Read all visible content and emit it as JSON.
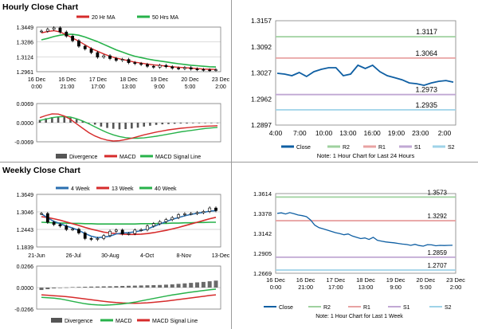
{
  "sections": {
    "hourly_title": "Hourly Close Chart",
    "weekly_title": "Weekly Close Chart"
  },
  "colors": {
    "close": "#0f5fa3",
    "ma20": "#d62b2b",
    "ma50": "#27b24a",
    "r2": "#9fd19f",
    "r1": "#e8a3a3",
    "s1": "#c1a8d4",
    "s2": "#9fd3e8",
    "divergence": "#555555",
    "macd_signal": "#d62b2b",
    "macd": "#27b24a",
    "ma4": "#2a6fb0",
    "ma13": "#d62b2b",
    "ma40": "#27b24a",
    "grid": "#c8c8c8"
  },
  "chart_data": [
    {
      "id": "hourly_price",
      "type": "line",
      "legend": [
        {
          "name": "20 Hr MA",
          "color_key": "ma20"
        },
        {
          "name": "50 Hrs MA",
          "color_key": "ma50"
        }
      ],
      "yticks": [
        "1.3449",
        "1.3286",
        "1.3124",
        "1.2961"
      ],
      "ylim": [
        1.2961,
        1.3449
      ],
      "xticks": [
        {
          "l1": "16 Dec",
          "l2": "0:00"
        },
        {
          "l1": "16 Dec",
          "l2": "21:00"
        },
        {
          "l1": "17 Dec",
          "l2": "17:00"
        },
        {
          "l1": "18 Dec",
          "l2": "13:00"
        },
        {
          "l1": "19 Dec",
          "l2": "9:00"
        },
        {
          "l1": "20 Dec",
          "l2": "5:00"
        },
        {
          "l1": "23 Dec",
          "l2": "2:00"
        }
      ],
      "series": [
        {
          "name": "Close",
          "kind": "candles",
          "values": [
            1.3405,
            1.3425,
            1.344,
            1.3395,
            1.335,
            1.33,
            1.324,
            1.321,
            1.317,
            1.312,
            1.3135,
            1.3105,
            1.3085,
            1.3095,
            1.306,
            1.305,
            1.304,
            1.302,
            1.301,
            1.303,
            1.3015,
            1.3,
            1.2995,
            1.3005,
            1.299,
            1.2985,
            1.298,
            1.2978,
            1.2982
          ]
        },
        {
          "name": "20 Hr MA",
          "values": [
            1.3385,
            1.34,
            1.341,
            1.3395,
            1.3365,
            1.333,
            1.3295,
            1.3255,
            1.3215,
            1.3185,
            1.3155,
            1.313,
            1.311,
            1.3095,
            1.308,
            1.3065,
            1.3055,
            1.3045,
            1.3035,
            1.303,
            1.3022,
            1.3015,
            1.301,
            1.3005,
            1.3,
            1.2995,
            1.299,
            1.2987,
            1.2985
          ]
        },
        {
          "name": "50 Hrs MA",
          "values": [
            1.331,
            1.3325,
            1.3345,
            1.336,
            1.337,
            1.337,
            1.336,
            1.334,
            1.3315,
            1.329,
            1.326,
            1.323,
            1.32,
            1.3175,
            1.315,
            1.313,
            1.3115,
            1.31,
            1.3088,
            1.3078,
            1.3068,
            1.3058,
            1.3048,
            1.304,
            1.3032,
            1.3026,
            1.302,
            1.3015,
            1.3012
          ]
        }
      ]
    },
    {
      "id": "hourly_macd",
      "type": "bar",
      "yticks": [
        "0.0069",
        "0.0000",
        "-0.0069"
      ],
      "ylim": [
        -0.0069,
        0.0069
      ],
      "legend": [
        {
          "name": "Divergence",
          "color_key": "divergence",
          "kind": "bar"
        },
        {
          "name": "MACD",
          "color_key": "macd_signal",
          "kind": "line"
        },
        {
          "name": "MACD Signal Line",
          "color_key": "macd",
          "kind": "line"
        }
      ],
      "divergence": [
        0.001,
        0.0016,
        0.002,
        0.0022,
        0.0021,
        0.0018,
        0.0012,
        0.0006,
        0.0,
        -0.0007,
        -0.0014,
        -0.0019,
        -0.0022,
        -0.0024,
        -0.0023,
        -0.0021,
        -0.0018,
        -0.0014,
        -0.0011,
        -0.0008,
        -0.0006,
        -0.0005,
        -0.0004,
        -0.0003,
        -0.0003,
        -0.0002,
        -0.0002,
        -0.0001,
        -0.0001,
        -0.0001
      ],
      "macd": [
        0.0018,
        0.0026,
        0.0032,
        0.0031,
        0.0024,
        0.0012,
        -0.0004,
        -0.002,
        -0.0036,
        -0.0048,
        -0.0057,
        -0.0063,
        -0.0066,
        -0.0065,
        -0.0061,
        -0.0056,
        -0.005,
        -0.0044,
        -0.0039,
        -0.0034,
        -0.003,
        -0.0026,
        -0.0023,
        -0.002,
        -0.0018,
        -0.0016,
        -0.0014,
        -0.0013,
        -0.0012,
        -0.0011
      ],
      "signal": [
        0.0008,
        0.0013,
        0.0018,
        0.0021,
        0.0022,
        0.002,
        0.0014,
        0.0006,
        -0.0004,
        -0.0015,
        -0.0026,
        -0.0036,
        -0.0044,
        -0.005,
        -0.0054,
        -0.0056,
        -0.0056,
        -0.0055,
        -0.0052,
        -0.0049,
        -0.0045,
        -0.0041,
        -0.0037,
        -0.0033,
        -0.003,
        -0.0027,
        -0.0024,
        -0.0021,
        -0.0019,
        -0.0017
      ]
    },
    {
      "id": "hourly_last24",
      "type": "line",
      "yticks": [
        "1.3157",
        "1.3092",
        "1.3027",
        "1.2962",
        "1.2897"
      ],
      "ylim": [
        1.2897,
        1.3157
      ],
      "xticks": [
        "4:00",
        "7:00",
        "10:00",
        "13:00",
        "16:00",
        "19:00",
        "23:00",
        "2:00"
      ],
      "levels": [
        {
          "name": "R2",
          "value": 1.3117,
          "label": "1.3117",
          "color_key": "r2"
        },
        {
          "name": "R1",
          "value": 1.3064,
          "label": "1.3064",
          "color_key": "r1"
        },
        {
          "name": "S1",
          "value": 1.2973,
          "label": "1.2973",
          "color_key": "s1"
        },
        {
          "name": "S2",
          "value": 1.2935,
          "label": "1.2935",
          "color_key": "s2"
        }
      ],
      "close": [
        1.3026,
        1.3024,
        1.302,
        1.3028,
        1.3018,
        1.303,
        1.3036,
        1.304,
        1.304,
        1.302,
        1.3024,
        1.3046,
        1.3038,
        1.3046,
        1.303,
        1.302,
        1.3015,
        1.301,
        1.3002,
        1.3,
        1.2996,
        1.3002,
        1.3006,
        1.3008,
        1.3004
      ],
      "legend": [
        "Close",
        "R2",
        "R1",
        "S1",
        "S2"
      ],
      "note": "Note: 1 Hour Chart for Last 24 Hours"
    },
    {
      "id": "weekly_price",
      "type": "line",
      "legend": [
        {
          "name": "4 Week",
          "color_key": "ma4"
        },
        {
          "name": "13 Week",
          "color_key": "ma13"
        },
        {
          "name": "40 Week",
          "color_key": "ma40"
        }
      ],
      "yticks": [
        "1.3649",
        "1.3046",
        "1.2443",
        "1.1839"
      ],
      "ylim": [
        1.1839,
        1.3649
      ],
      "xticks": [
        "21-Jun",
        "26-Jul",
        "30-Aug",
        "4-Oct",
        "8-Nov",
        "13-Dec"
      ],
      "series": [
        {
          "name": "Close",
          "kind": "candles",
          "values": [
            1.299,
            1.269,
            1.261,
            1.256,
            1.244,
            1.245,
            1.232,
            1.213,
            1.21,
            1.213,
            1.223,
            1.238,
            1.242,
            1.229,
            1.23,
            1.242,
            1.243,
            1.256,
            1.264,
            1.271,
            1.278,
            1.285,
            1.295,
            1.298,
            1.299,
            1.302,
            1.306,
            1.318,
            1.309
          ]
        },
        {
          "name": "4 Week",
          "values": [
            1.298,
            1.284,
            1.272,
            1.264,
            1.256,
            1.249,
            1.241,
            1.23,
            1.221,
            1.216,
            1.218,
            1.221,
            1.229,
            1.232,
            1.233,
            1.236,
            1.24,
            1.246,
            1.254,
            1.263,
            1.271,
            1.279,
            1.285,
            1.291,
            1.296,
            1.3,
            1.303,
            1.307,
            1.309
          ]
        },
        {
          "name": "13 Week",
          "values": [
            1.288,
            1.285,
            1.281,
            1.276,
            1.27,
            1.264,
            1.258,
            1.251,
            1.245,
            1.24,
            1.235,
            1.232,
            1.23,
            1.228,
            1.227,
            1.227,
            1.228,
            1.23,
            1.233,
            1.237,
            1.241,
            1.246,
            1.251,
            1.257,
            1.263,
            1.269,
            1.275,
            1.281,
            1.286
          ]
        },
        {
          "name": "40 Week",
          "values": [
            1.269,
            1.268,
            1.267,
            1.266,
            1.266,
            1.265,
            1.265,
            1.264,
            1.264,
            1.263,
            1.263,
            1.263,
            1.263,
            1.263,
            1.263,
            1.263,
            1.264,
            1.264,
            1.264,
            1.265,
            1.265,
            1.266,
            1.266,
            1.267,
            1.267,
            1.268,
            1.268,
            1.269,
            1.269
          ]
        }
      ]
    },
    {
      "id": "weekly_macd",
      "type": "bar",
      "yticks": [
        "0.0266",
        "0.0000",
        "-0.0266"
      ],
      "ylim": [
        -0.0266,
        0.0266
      ],
      "legend": [
        {
          "name": "Divergence",
          "color_key": "divergence",
          "kind": "bar"
        },
        {
          "name": "MACD",
          "color_key": "macd",
          "kind": "line"
        },
        {
          "name": "MACD Signal Line",
          "color_key": "macd_signal",
          "kind": "line"
        }
      ],
      "divergence": [
        -0.003,
        -0.002,
        -0.001,
        -0.0005,
        0.0002,
        0.0006,
        0.0008,
        0.001,
        0.0012,
        0.0013,
        0.0015,
        0.0016,
        0.0018,
        0.002,
        0.0022,
        0.0024,
        0.0026,
        0.0028,
        0.003,
        0.0032,
        0.0036,
        0.004,
        0.0046,
        0.0052,
        0.0058,
        0.0064,
        0.007,
        0.0078,
        0.0086
      ],
      "macd": [
        -0.012,
        -0.0125,
        -0.013,
        -0.014,
        -0.0155,
        -0.017,
        -0.0185,
        -0.02,
        -0.021,
        -0.0215,
        -0.0218,
        -0.0215,
        -0.021,
        -0.0202,
        -0.0192,
        -0.018,
        -0.0165,
        -0.015,
        -0.0135,
        -0.012,
        -0.0105,
        -0.0092,
        -0.008,
        -0.0068,
        -0.0056,
        -0.0046,
        -0.0036,
        -0.0028,
        -0.002
      ],
      "signal": [
        -0.009,
        -0.0095,
        -0.01,
        -0.0105,
        -0.0112,
        -0.012,
        -0.013,
        -0.014,
        -0.015,
        -0.016,
        -0.017,
        -0.0178,
        -0.0185,
        -0.019,
        -0.0193,
        -0.0194,
        -0.0192,
        -0.0188,
        -0.0182,
        -0.0175,
        -0.0167,
        -0.0158,
        -0.0148,
        -0.0138,
        -0.0128,
        -0.0118,
        -0.0108,
        -0.0098,
        -0.009
      ]
    },
    {
      "id": "weekly_last1w",
      "type": "line",
      "yticks": [
        "1.3614",
        "1.3378",
        "1.3142",
        "1.2905",
        "1.2669"
      ],
      "ylim": [
        1.2669,
        1.3614
      ],
      "xticks": [
        {
          "l1": "16 Dec",
          "l2": "0:00"
        },
        {
          "l1": "16 Dec",
          "l2": "21:00"
        },
        {
          "l1": "17 Dec",
          "l2": "17:00"
        },
        {
          "l1": "18 Dec",
          "l2": "13:00"
        },
        {
          "l1": "19 Dec",
          "l2": "9:00"
        },
        {
          "l1": "20 Dec",
          "l2": "5:00"
        },
        {
          "l1": "23 Dec",
          "l2": "2:00"
        }
      ],
      "levels": [
        {
          "name": "R2",
          "value": 1.3573,
          "label": "1.3573",
          "color_key": "r2"
        },
        {
          "name": "R1",
          "value": 1.3292,
          "label": "1.3292",
          "color_key": "r1"
        },
        {
          "name": "S1",
          "value": 1.2859,
          "label": "1.2859",
          "color_key": "s1"
        },
        {
          "name": "S2",
          "value": 1.2707,
          "label": "1.2707",
          "color_key": "s2"
        }
      ],
      "close": [
        1.338,
        1.3385,
        1.3372,
        1.3388,
        1.3376,
        1.336,
        1.3352,
        1.334,
        1.33,
        1.324,
        1.321,
        1.3195,
        1.318,
        1.3165,
        1.315,
        1.314,
        1.3125,
        1.3135,
        1.311,
        1.3095,
        1.308,
        1.3088,
        1.307,
        1.3095,
        1.306,
        1.305,
        1.304,
        1.3035,
        1.303,
        1.3022,
        1.3015,
        1.301,
        1.3,
        1.3012,
        1.2998,
        1.299,
        1.3008,
        1.3005,
        1.2995,
        1.3,
        1.2998,
        1.3,
        1.3001
      ],
      "legend": [
        "Close",
        "R2",
        "R1",
        "S1",
        "S2"
      ],
      "note": "Note: 1 Hour Chart for Last 1 Week"
    }
  ]
}
